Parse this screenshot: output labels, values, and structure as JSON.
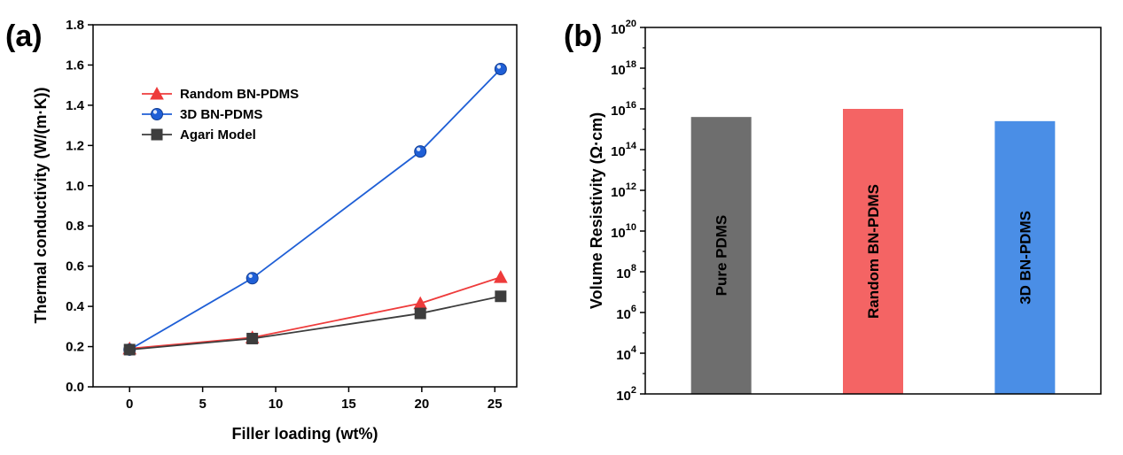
{
  "panels": {
    "a_label": "(a)",
    "b_label": "(b)"
  },
  "chart_data": [
    {
      "type": "line",
      "xlabel": "Filler loading (wt%)",
      "ylabel": "Thermal conductivity (W/(m·K))",
      "xlim": [
        -2.5,
        26.5
      ],
      "ylim": [
        0,
        1.8
      ],
      "x_ticks": [
        "0",
        "5",
        "10",
        "15",
        "20",
        "25"
      ],
      "y_ticks": [
        "0.0",
        "0.2",
        "0.4",
        "0.6",
        "0.8",
        "1.0",
        "1.2",
        "1.4",
        "1.6",
        "1.8"
      ],
      "grid": false,
      "legend_position": "upper-left",
      "series": [
        {
          "name": "Random BN-PDMS",
          "marker": "triangle",
          "color": "#ee3b3b",
          "x": [
            0,
            8.4,
            19.9,
            25.4
          ],
          "y": [
            0.19,
            0.245,
            0.415,
            0.545
          ]
        },
        {
          "name": "3D BN-PDMS",
          "marker": "sphere",
          "color": "#1f5fd6",
          "x": [
            0,
            8.4,
            19.9,
            25.4
          ],
          "y": [
            0.185,
            0.54,
            1.17,
            1.58
          ]
        },
        {
          "name": "Agari Model",
          "marker": "square",
          "color": "#3d3d3d",
          "x": [
            0,
            8.4,
            19.9,
            25.4
          ],
          "y": [
            0.185,
            0.24,
            0.365,
            0.45
          ]
        }
      ]
    },
    {
      "type": "bar",
      "ylabel": "Volume Resistivity (Ω·cm)",
      "yscale": "log",
      "ylim": [
        100,
        1e+20
      ],
      "y_ticks": [
        {
          "base": "10",
          "exp": "2"
        },
        {
          "base": "10",
          "exp": "4"
        },
        {
          "base": "10",
          "exp": "6"
        },
        {
          "base": "10",
          "exp": "8"
        },
        {
          "base": "10",
          "exp": "10"
        },
        {
          "base": "10",
          "exp": "12"
        },
        {
          "base": "10",
          "exp": "14"
        },
        {
          "base": "10",
          "exp": "16"
        },
        {
          "base": "10",
          "exp": "18"
        },
        {
          "base": "10",
          "exp": "20"
        }
      ],
      "categories": [
        "Pure PDMS",
        "Random BN-PDMS",
        "3D BN-PDMS"
      ],
      "values": [
        4000000000000000.0,
        1e+16,
        2500000000000000.0
      ],
      "colors": [
        "#6e6e6e",
        "#f46464",
        "#4a8ee6"
      ],
      "grid": false
    }
  ]
}
